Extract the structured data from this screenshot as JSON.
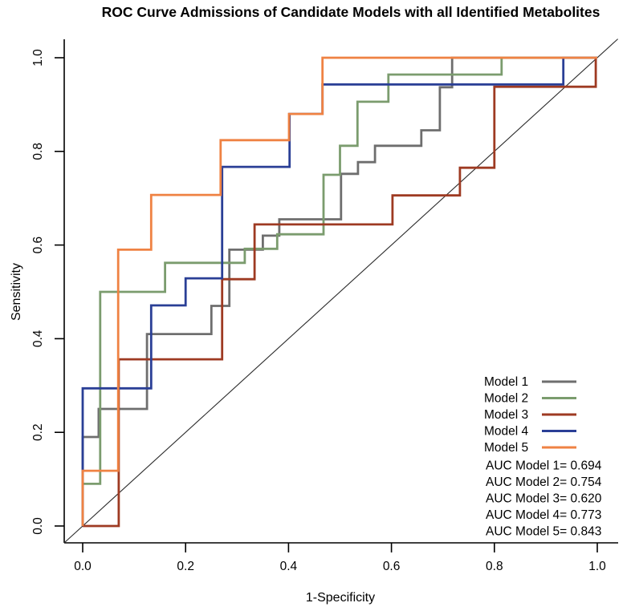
{
  "title": "ROC Curve Admissions of Candidate Models with all Identified Metabolites",
  "axes": {
    "xlabel": "1-Specificity",
    "ylabel": "Sensitivity",
    "x_ticks": [
      "0.0",
      "0.2",
      "0.4",
      "0.6",
      "0.8",
      "1.0"
    ],
    "y_ticks": [
      "0.0",
      "0.2",
      "0.4",
      "0.6",
      "0.8",
      "1.0"
    ]
  },
  "legend": {
    "models": [
      {
        "label": "Model 1",
        "color": "#6e6e6e"
      },
      {
        "label": "Model 2",
        "color": "#7b9c6e"
      },
      {
        "label": "Model 3",
        "color": "#9e3a22"
      },
      {
        "label": "Model 4",
        "color": "#2a3f96"
      },
      {
        "label": "Model 5",
        "color": "#ef8243"
      }
    ],
    "auc_lines": [
      "AUC Model 1= 0.694",
      "AUC Model 2= 0.754",
      "AUC Model 3= 0.620",
      "AUC Model 4= 0.773",
      "AUC Model 5= 0.843"
    ]
  },
  "chart_data": {
    "type": "line",
    "subtype": "roc-step-curves",
    "title": "ROC Curve Admissions of Candidate Models with all Identified Metabolites",
    "xlabel": "1-Specificity",
    "ylabel": "Sensitivity",
    "xlim": [
      0,
      1
    ],
    "ylim": [
      0,
      1
    ],
    "grid": false,
    "legend_position": "lower-right",
    "diagonal_reference": {
      "from": [
        0,
        0
      ],
      "to": [
        1,
        1
      ],
      "color": "#2b2b2b"
    },
    "auc": {
      "Model 1": 0.694,
      "Model 2": 0.754,
      "Model 3": 0.62,
      "Model 4": 0.773,
      "Model 5": 0.843
    },
    "series": [
      {
        "name": "Model 1",
        "color": "#6e6e6e",
        "points": [
          [
            0,
            0
          ],
          [
            0,
            0.19
          ],
          [
            0.031,
            0.19
          ],
          [
            0.031,
            0.25
          ],
          [
            0.125,
            0.25
          ],
          [
            0.125,
            0.41
          ],
          [
            0.25,
            0.41
          ],
          [
            0.25,
            0.47
          ],
          [
            0.285,
            0.47
          ],
          [
            0.285,
            0.59
          ],
          [
            0.35,
            0.59
          ],
          [
            0.35,
            0.62
          ],
          [
            0.382,
            0.62
          ],
          [
            0.382,
            0.655
          ],
          [
            0.502,
            0.655
          ],
          [
            0.502,
            0.752
          ],
          [
            0.535,
            0.752
          ],
          [
            0.535,
            0.777
          ],
          [
            0.568,
            0.777
          ],
          [
            0.568,
            0.812
          ],
          [
            0.658,
            0.812
          ],
          [
            0.658,
            0.845
          ],
          [
            0.694,
            0.845
          ],
          [
            0.694,
            0.937
          ],
          [
            0.718,
            0.937
          ],
          [
            0.718,
            1
          ],
          [
            1,
            1
          ]
        ]
      },
      {
        "name": "Model 2",
        "color": "#7b9c6e",
        "points": [
          [
            0,
            0
          ],
          [
            0,
            0.09
          ],
          [
            0.034,
            0.09
          ],
          [
            0.034,
            0.5
          ],
          [
            0.16,
            0.5
          ],
          [
            0.16,
            0.562
          ],
          [
            0.315,
            0.562
          ],
          [
            0.315,
            0.592
          ],
          [
            0.378,
            0.592
          ],
          [
            0.378,
            0.623
          ],
          [
            0.468,
            0.623
          ],
          [
            0.468,
            0.75
          ],
          [
            0.5,
            0.75
          ],
          [
            0.5,
            0.812
          ],
          [
            0.534,
            0.812
          ],
          [
            0.534,
            0.906
          ],
          [
            0.594,
            0.906
          ],
          [
            0.594,
            0.964
          ],
          [
            0.814,
            0.964
          ],
          [
            0.814,
            1
          ],
          [
            1,
            1
          ]
        ]
      },
      {
        "name": "Model 3",
        "color": "#9e3a22",
        "points": [
          [
            0,
            0
          ],
          [
            0.07,
            0
          ],
          [
            0.07,
            0.356
          ],
          [
            0.271,
            0.356
          ],
          [
            0.271,
            0.527
          ],
          [
            0.334,
            0.527
          ],
          [
            0.334,
            0.644
          ],
          [
            0.602,
            0.644
          ],
          [
            0.602,
            0.706
          ],
          [
            0.733,
            0.706
          ],
          [
            0.733,
            0.765
          ],
          [
            0.8,
            0.765
          ],
          [
            0.8,
            0.938
          ],
          [
            0.997,
            0.938
          ],
          [
            0.997,
            1
          ],
          [
            1,
            1
          ]
        ]
      },
      {
        "name": "Model 4",
        "color": "#2a3f96",
        "points": [
          [
            0,
            0
          ],
          [
            0,
            0.294
          ],
          [
            0.133,
            0.294
          ],
          [
            0.133,
            0.471
          ],
          [
            0.2,
            0.471
          ],
          [
            0.2,
            0.529
          ],
          [
            0.271,
            0.529
          ],
          [
            0.271,
            0.767
          ],
          [
            0.402,
            0.767
          ],
          [
            0.402,
            0.88
          ],
          [
            0.466,
            0.88
          ],
          [
            0.466,
            0.943
          ],
          [
            0.934,
            0.943
          ],
          [
            0.934,
            1
          ],
          [
            1,
            1
          ]
        ]
      },
      {
        "name": "Model 5",
        "color": "#ef8243",
        "points": [
          [
            0,
            0
          ],
          [
            0,
            0.118
          ],
          [
            0.069,
            0.118
          ],
          [
            0.069,
            0.59
          ],
          [
            0.133,
            0.59
          ],
          [
            0.133,
            0.707
          ],
          [
            0.268,
            0.707
          ],
          [
            0.268,
            0.824
          ],
          [
            0.401,
            0.824
          ],
          [
            0.401,
            0.88
          ],
          [
            0.466,
            0.88
          ],
          [
            0.466,
            1
          ],
          [
            1,
            1
          ]
        ]
      }
    ]
  }
}
